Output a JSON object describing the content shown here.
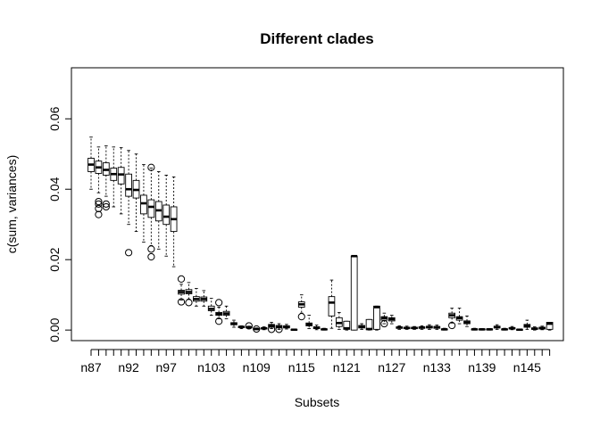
{
  "chart_data": {
    "type": "box",
    "title": "Different clades",
    "xlabel": "Subsets",
    "ylabel": "c(sum, variances)",
    "ylim": [
      -0.003,
      0.0745
    ],
    "yticks": [
      0.0,
      0.02,
      0.04,
      0.06
    ],
    "ytick_labels": [
      "0.00",
      "0.02",
      "0.04",
      "0.06"
    ],
    "xtick_labels": [
      "n87",
      "n92",
      "n97",
      "n103",
      "n109",
      "n115",
      "n121",
      "n127",
      "n133",
      "n139",
      "n145"
    ],
    "xtick_label_positions": [
      1,
      6,
      11,
      17,
      23,
      29,
      35,
      41,
      47,
      53,
      59
    ],
    "grid": false,
    "boxes": [
      {
        "q1": 0.045,
        "med": 0.047,
        "q3": 0.0488,
        "wlo": 0.04,
        "whi": 0.0548,
        "out": []
      },
      {
        "q1": 0.0445,
        "med": 0.0462,
        "q3": 0.048,
        "wlo": 0.039,
        "whi": 0.052,
        "out": [
          0.0365,
          0.0358,
          0.0345,
          0.0328
        ]
      },
      {
        "q1": 0.044,
        "med": 0.0455,
        "q3": 0.0475,
        "wlo": 0.038,
        "whi": 0.0523,
        "out": [
          0.0358,
          0.035
        ]
      },
      {
        "q1": 0.0425,
        "med": 0.0443,
        "q3": 0.046,
        "wlo": 0.035,
        "whi": 0.052,
        "out": []
      },
      {
        "q1": 0.0415,
        "med": 0.0442,
        "q3": 0.0462,
        "wlo": 0.033,
        "whi": 0.0518,
        "out": []
      },
      {
        "q1": 0.038,
        "med": 0.04,
        "q3": 0.0443,
        "wlo": 0.03,
        "whi": 0.051,
        "out": [
          0.022
        ]
      },
      {
        "q1": 0.0375,
        "med": 0.0398,
        "q3": 0.0425,
        "wlo": 0.028,
        "whi": 0.05,
        "out": []
      },
      {
        "q1": 0.033,
        "med": 0.036,
        "q3": 0.0383,
        "wlo": 0.025,
        "whi": 0.047,
        "out": []
      },
      {
        "q1": 0.032,
        "med": 0.035,
        "q3": 0.037,
        "wlo": 0.024,
        "whi": 0.046,
        "out": [
          0.0462,
          0.023,
          0.0208
        ]
      },
      {
        "q1": 0.031,
        "med": 0.034,
        "q3": 0.0365,
        "wlo": 0.023,
        "whi": 0.045,
        "out": []
      },
      {
        "q1": 0.03,
        "med": 0.0322,
        "q3": 0.0355,
        "wlo": 0.021,
        "whi": 0.044,
        "out": []
      },
      {
        "q1": 0.028,
        "med": 0.0315,
        "q3": 0.035,
        "wlo": 0.018,
        "whi": 0.0435,
        "out": []
      },
      {
        "q1": 0.0102,
        "med": 0.0108,
        "q3": 0.0113,
        "wlo": 0.0085,
        "whi": 0.013,
        "out": [
          0.0145,
          0.008
        ]
      },
      {
        "q1": 0.0103,
        "med": 0.0108,
        "q3": 0.0115,
        "wlo": 0.0088,
        "whi": 0.0135,
        "out": [
          0.0078
        ]
      },
      {
        "q1": 0.0082,
        "med": 0.0088,
        "q3": 0.0095,
        "wlo": 0.0068,
        "whi": 0.0118,
        "out": []
      },
      {
        "q1": 0.0082,
        "med": 0.0088,
        "q3": 0.0094,
        "wlo": 0.0068,
        "whi": 0.0112,
        "out": []
      },
      {
        "q1": 0.0055,
        "med": 0.006,
        "q3": 0.0068,
        "wlo": 0.0042,
        "whi": 0.009,
        "out": []
      },
      {
        "q1": 0.0042,
        "med": 0.0046,
        "q3": 0.005,
        "wlo": 0.0032,
        "whi": 0.0065,
        "out": [
          0.0078,
          0.0025
        ]
      },
      {
        "q1": 0.0042,
        "med": 0.0047,
        "q3": 0.0053,
        "wlo": 0.0032,
        "whi": 0.0068,
        "out": []
      },
      {
        "q1": 0.0015,
        "med": 0.0018,
        "q3": 0.0021,
        "wlo": 0.0008,
        "whi": 0.0028,
        "out": []
      },
      {
        "q1": 0.0007,
        "med": 0.0009,
        "q3": 0.001,
        "wlo": 0.0004,
        "whi": 0.0012,
        "out": []
      },
      {
        "q1": 0.0007,
        "med": 0.0008,
        "q3": 0.0009,
        "wlo": 0.0004,
        "whi": 0.0011,
        "out": [
          0.0012
        ]
      },
      {
        "q1": 0.0002,
        "med": 0.0003,
        "q3": 0.0004,
        "wlo": 0.0001,
        "whi": 0.0006,
        "out": [
          0.0003
        ]
      },
      {
        "q1": 0.0003,
        "med": 0.0005,
        "q3": 0.0006,
        "wlo": 0.0001,
        "whi": 0.0009,
        "out": []
      },
      {
        "q1": 0.0008,
        "med": 0.0012,
        "q3": 0.0016,
        "wlo": 0.0004,
        "whi": 0.0022,
        "out": [
          0.0002
        ]
      },
      {
        "q1": 0.0006,
        "med": 0.001,
        "q3": 0.0013,
        "wlo": 0.0002,
        "whi": 0.0018,
        "out": [
          0.0002
        ]
      },
      {
        "q1": 0.0006,
        "med": 0.0009,
        "q3": 0.0012,
        "wlo": 0.0003,
        "whi": 0.0016,
        "out": []
      },
      {
        "q1": 0.0,
        "med": 0.0001,
        "q3": 0.0002,
        "wlo": 0.0,
        "whi": 0.0003,
        "out": []
      },
      {
        "q1": 0.0065,
        "med": 0.0073,
        "q3": 0.008,
        "wlo": 0.0048,
        "whi": 0.01,
        "out": [
          0.0038
        ]
      },
      {
        "q1": 0.0012,
        "med": 0.0016,
        "q3": 0.002,
        "wlo": 0.0004,
        "whi": 0.0042,
        "out": []
      },
      {
        "q1": 0.0004,
        "med": 0.0007,
        "q3": 0.0009,
        "wlo": 0.0001,
        "whi": 0.0014,
        "out": []
      },
      {
        "q1": 0.0001,
        "med": 0.0002,
        "q3": 0.0003,
        "wlo": 0.0,
        "whi": 0.0005,
        "out": []
      },
      {
        "q1": 0.004,
        "med": 0.0078,
        "q3": 0.0095,
        "wlo": 0.0005,
        "whi": 0.0142,
        "out": []
      },
      {
        "q1": 0.001,
        "med": 0.002,
        "q3": 0.0035,
        "wlo": 0.0002,
        "whi": 0.005,
        "out": []
      },
      {
        "q1": 0.0002,
        "med": 0.0005,
        "q3": 0.0025,
        "wlo": 0.0,
        "whi": 0.0025,
        "out": []
      },
      {
        "q1": 0.0,
        "med": 0.021,
        "q3": 0.021,
        "wlo": 0.0,
        "whi": 0.021,
        "out": []
      },
      {
        "q1": 0.0006,
        "med": 0.0009,
        "q3": 0.0013,
        "wlo": 0.0002,
        "whi": 0.0018,
        "out": []
      },
      {
        "q1": 0.0001,
        "med": 0.0003,
        "q3": 0.003,
        "wlo": 0.0,
        "whi": 0.003,
        "out": []
      },
      {
        "q1": 0.0002,
        "med": 0.0065,
        "q3": 0.0068,
        "wlo": 0.0,
        "whi": 0.0068,
        "out": []
      },
      {
        "q1": 0.0028,
        "med": 0.0034,
        "q3": 0.0038,
        "wlo": 0.0018,
        "whi": 0.0048,
        "out": [
          0.0018
        ]
      },
      {
        "q1": 0.0026,
        "med": 0.0031,
        "q3": 0.0035,
        "wlo": 0.0018,
        "whi": 0.0042,
        "out": []
      },
      {
        "q1": 0.0005,
        "med": 0.0007,
        "q3": 0.0009,
        "wlo": 0.0002,
        "whi": 0.0012,
        "out": []
      },
      {
        "q1": 0.0004,
        "med": 0.0006,
        "q3": 0.0008,
        "wlo": 0.0002,
        "whi": 0.0011,
        "out": []
      },
      {
        "q1": 0.0004,
        "med": 0.0006,
        "q3": 0.0008,
        "wlo": 0.0002,
        "whi": 0.001,
        "out": []
      },
      {
        "q1": 0.0005,
        "med": 0.0007,
        "q3": 0.0009,
        "wlo": 0.0002,
        "whi": 0.0012,
        "out": []
      },
      {
        "q1": 0.0006,
        "med": 0.0008,
        "q3": 0.0011,
        "wlo": 0.0002,
        "whi": 0.0015,
        "out": []
      },
      {
        "q1": 0.0005,
        "med": 0.0008,
        "q3": 0.001,
        "wlo": 0.0002,
        "whi": 0.0014,
        "out": []
      },
      {
        "q1": 0.0001,
        "med": 0.0002,
        "q3": 0.0003,
        "wlo": 0.0,
        "whi": 0.0005,
        "out": []
      },
      {
        "q1": 0.0035,
        "med": 0.0042,
        "q3": 0.0048,
        "wlo": 0.002,
        "whi": 0.0062,
        "out": [
          0.0013
        ]
      },
      {
        "q1": 0.0028,
        "med": 0.0034,
        "q3": 0.0038,
        "wlo": 0.0018,
        "whi": 0.0062,
        "out": []
      },
      {
        "q1": 0.0018,
        "med": 0.0022,
        "q3": 0.0026,
        "wlo": 0.001,
        "whi": 0.004,
        "out": []
      },
      {
        "q1": 0.0001,
        "med": 0.0002,
        "q3": 0.0003,
        "wlo": 0.0,
        "whi": 0.0005,
        "out": []
      },
      {
        "q1": 0.0001,
        "med": 0.0002,
        "q3": 0.0003,
        "wlo": 0.0,
        "whi": 0.0004,
        "out": []
      },
      {
        "q1": 0.0001,
        "med": 0.0002,
        "q3": 0.0003,
        "wlo": 0.0,
        "whi": 0.0004,
        "out": []
      },
      {
        "q1": 0.0006,
        "med": 0.0008,
        "q3": 0.0011,
        "wlo": 0.0002,
        "whi": 0.0015,
        "out": []
      },
      {
        "q1": 0.0001,
        "med": 0.0002,
        "q3": 0.0003,
        "wlo": 0.0,
        "whi": 0.0005,
        "out": []
      },
      {
        "q1": 0.0003,
        "med": 0.0005,
        "q3": 0.0007,
        "wlo": 0.0001,
        "whi": 0.001,
        "out": []
      },
      {
        "q1": 0.0,
        "med": 0.0001,
        "q3": 0.0002,
        "wlo": 0.0,
        "whi": 0.0003,
        "out": []
      },
      {
        "q1": 0.0008,
        "med": 0.0012,
        "q3": 0.0016,
        "wlo": 0.0002,
        "whi": 0.0028,
        "out": []
      },
      {
        "q1": 0.0002,
        "med": 0.0004,
        "q3": 0.0006,
        "wlo": 0.0,
        "whi": 0.0009,
        "out": []
      },
      {
        "q1": 0.0003,
        "med": 0.0006,
        "q3": 0.0008,
        "wlo": 0.0001,
        "whi": 0.0011,
        "out": []
      },
      {
        "q1": 0.0002,
        "med": 0.0018,
        "q3": 0.0022,
        "wlo": 0.0,
        "whi": 0.0022,
        "out": []
      }
    ]
  }
}
